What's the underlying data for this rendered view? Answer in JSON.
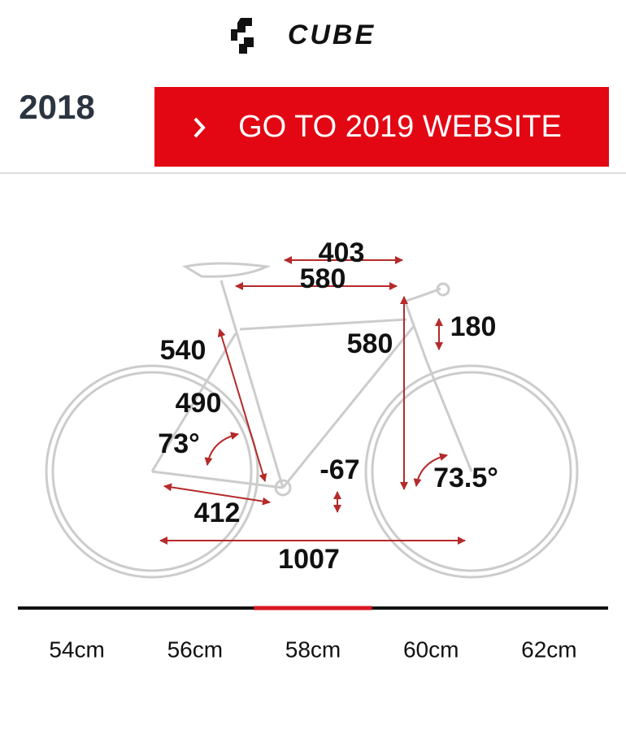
{
  "header": {
    "logo": "CUBE",
    "year": "2018",
    "button": {
      "label": "GO TO 2019 WEBSITE"
    }
  },
  "geometry": {
    "labels": [
      "403",
      "580",
      "580",
      "180",
      "540",
      "490",
      "73°",
      "-67",
      "73.5°",
      "412",
      "1007"
    ]
  },
  "size_tabs": {
    "items": [
      "54cm",
      "56cm",
      "58cm",
      "60cm",
      "62cm"
    ],
    "selected": 2
  }
}
